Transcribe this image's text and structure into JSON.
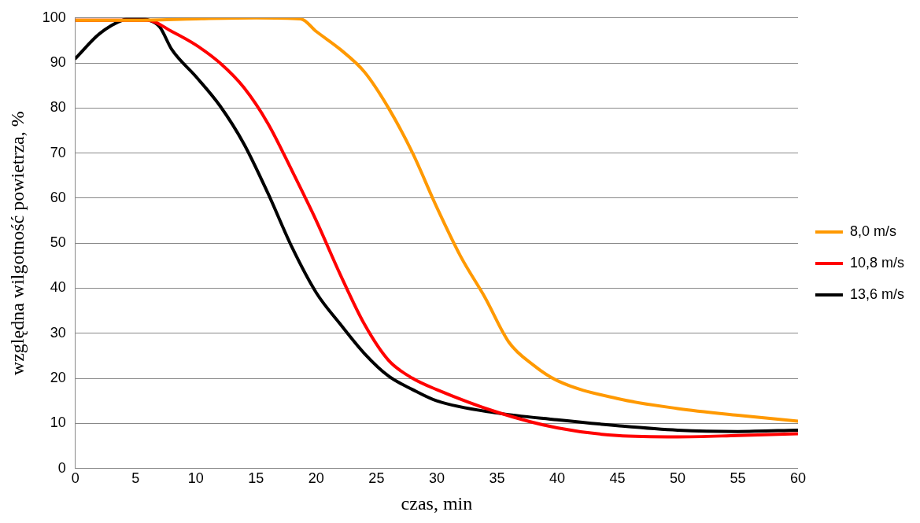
{
  "chart_data": {
    "type": "line",
    "xlabel": "czas, min",
    "ylabel": "względna wilgotność powietrza, %",
    "xlim": [
      0,
      60
    ],
    "xticks": [
      0,
      5,
      10,
      15,
      20,
      25,
      30,
      35,
      40,
      45,
      50,
      55,
      60
    ],
    "ylim": [
      0,
      100
    ],
    "yticks": [
      0,
      10,
      20,
      30,
      40,
      50,
      60,
      70,
      80,
      90,
      100
    ],
    "grid": "y",
    "legend": "right",
    "marker": "none",
    "line_style": "solid",
    "series": [
      {
        "name": "8,0 m/s",
        "color": "#ff9900",
        "x": [
          0,
          5,
          10,
          15,
          18.7,
          20,
          22,
          24,
          26,
          28,
          30,
          32,
          34,
          36,
          38,
          40,
          45,
          50,
          55,
          60
        ],
        "values": [
          99.5,
          99.5,
          99.8,
          100,
          99.8,
          97,
          93,
          88,
          80,
          70,
          58,
          47,
          38,
          28,
          23,
          19.5,
          15.5,
          13.3,
          11.8,
          10.5
        ]
      },
      {
        "name": "10,8 m/s",
        "color": "#ff0000",
        "x": [
          0,
          6,
          8,
          10,
          12,
          14,
          16,
          18,
          20,
          22,
          24,
          26,
          28,
          30,
          35,
          40,
          45,
          50,
          55,
          60
        ],
        "values": [
          99.5,
          99.5,
          97,
          94,
          90,
          84.5,
          76.5,
          66,
          55,
          43,
          32,
          24,
          20,
          17.5,
          12.5,
          9,
          7.3,
          7,
          7.3,
          7.7
        ]
      },
      {
        "name": "13,6 m/s",
        "color": "#000000",
        "x": [
          0,
          2,
          4,
          5,
          6,
          7,
          8,
          10,
          12,
          14,
          16,
          18,
          20,
          22,
          24,
          26,
          28,
          30,
          35,
          40,
          45,
          50,
          55,
          60
        ],
        "values": [
          91,
          96.5,
          99.6,
          100,
          99.6,
          98,
          93,
          87,
          80.5,
          72,
          61,
          49,
          39,
          32,
          25.5,
          20.5,
          17.5,
          15,
          12.3,
          10.8,
          9.5,
          8.5,
          8.2,
          8.5
        ]
      }
    ]
  }
}
